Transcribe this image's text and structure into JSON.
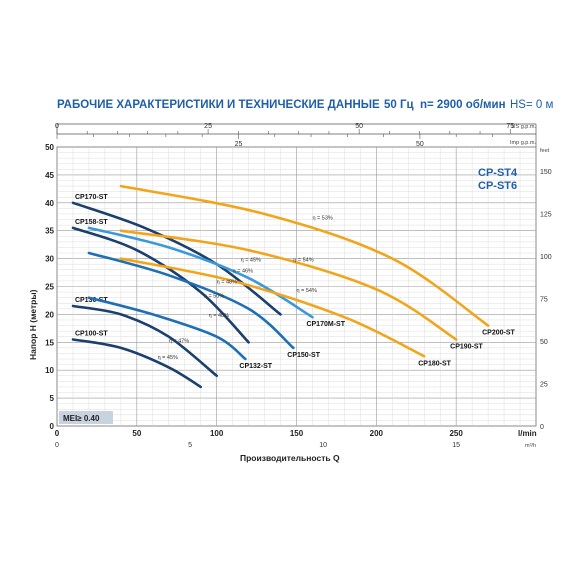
{
  "header": {
    "title": "РАБОЧИЕ ХАРАКТЕРИСТИКИ И ТЕХНИЧЕСКИЕ ДАННЫЕ",
    "freq": "50 Гц",
    "speed": "n= 2900 об/мин",
    "hs": "HS= 0 м"
  },
  "model_labels": [
    "CP-ST4",
    "CP-ST6"
  ],
  "mei_label": "MEI≥ 0.40",
  "colors": {
    "dark": "#1b3f6e",
    "mid": "#1f6fb5",
    "light": "#3a9ad9",
    "orange": "#f2a51a",
    "title": "#1f5fa8"
  },
  "chart_data": {
    "type": "line",
    "xlabel": "Производительность Q",
    "ylabel": "Напор H (метры)",
    "xlim": [
      0,
      300
    ],
    "ylim": [
      0,
      50
    ],
    "x_unit": "l/min",
    "x_ticks": [
      "0",
      "50",
      "100",
      "150",
      "200",
      "250"
    ],
    "y_ticks": [
      "0",
      "5",
      "10",
      "15",
      "20",
      "25",
      "30",
      "35",
      "40",
      "45",
      "50"
    ],
    "grid": true,
    "axes": {
      "top_us": {
        "unit": "US g.p.m.",
        "ticks": [
          "0",
          "25",
          "50",
          "75"
        ]
      },
      "top_imp": {
        "unit": "Imp g.p.m.",
        "ticks": [
          "25",
          "50"
        ]
      },
      "right_feet": {
        "unit": "feet",
        "ticks": [
          "0",
          "25",
          "50",
          "75",
          "100",
          "125",
          "150"
        ]
      },
      "bottom_m3h": {
        "unit": "m³/h",
        "ticks": [
          "0",
          "5",
          "10",
          "15"
        ]
      }
    },
    "series": [
      {
        "name": "CP100-ST",
        "color": "dark",
        "x": [
          10,
          40,
          70,
          90
        ],
        "y": [
          15.5,
          14,
          10.5,
          7
        ]
      },
      {
        "name": "CP130-ST",
        "color": "dark",
        "x": [
          10,
          40,
          70,
          100
        ],
        "y": [
          21.5,
          20,
          16,
          9
        ]
      },
      {
        "name": "CP158-ST",
        "color": "dark",
        "x": [
          10,
          50,
          90,
          120
        ],
        "y": [
          35.5,
          31.5,
          24,
          15
        ]
      },
      {
        "name": "CP170-ST",
        "color": "dark",
        "x": [
          10,
          55,
          100,
          140
        ],
        "y": [
          40,
          35.5,
          29,
          20
        ]
      },
      {
        "name": "CP132-ST",
        "color": "mid",
        "x": [
          20,
          60,
          100,
          118
        ],
        "y": [
          23,
          20,
          16,
          12
        ]
      },
      {
        "name": "CP150-ST",
        "color": "mid",
        "x": [
          20,
          70,
          120,
          148
        ],
        "y": [
          31,
          27,
          21,
          14
        ]
      },
      {
        "name": "CP170M-ST",
        "color": "light",
        "x": [
          20,
          70,
          120,
          160
        ],
        "y": [
          35.5,
          32,
          26.5,
          19.5
        ]
      },
      {
        "name": "CP180-ST",
        "color": "orange",
        "x": [
          40,
          110,
          180,
          230
        ],
        "y": [
          30,
          26,
          19.5,
          12.5
        ]
      },
      {
        "name": "CP190-ST",
        "color": "orange",
        "x": [
          40,
          120,
          200,
          250
        ],
        "y": [
          35,
          31.5,
          24.5,
          15.5
        ]
      },
      {
        "name": "CP200-ST",
        "color": "orange",
        "x": [
          40,
          130,
          210,
          270
        ],
        "y": [
          43,
          38,
          30,
          18
        ]
      }
    ],
    "efficiency_labels": [
      {
        "text": "η = 45%",
        "x": 63,
        "y": 12
      },
      {
        "text": "η = 47%",
        "x": 70,
        "y": 15
      },
      {
        "text": "η = 48%",
        "x": 95,
        "y": 19.5
      },
      {
        "text": "η = 50%",
        "x": 92,
        "y": 23
      },
      {
        "text": "η = 48%",
        "x": 100,
        "y": 25.5
      },
      {
        "text": "η = 46%",
        "x": 110,
        "y": 27.5
      },
      {
        "text": "η = 45%",
        "x": 115,
        "y": 29.5
      },
      {
        "text": "η = 54%",
        "x": 150,
        "y": 24
      },
      {
        "text": "η = 54%",
        "x": 148,
        "y": 29.5
      },
      {
        "text": "η = 53%",
        "x": 160,
        "y": 37
      }
    ]
  }
}
